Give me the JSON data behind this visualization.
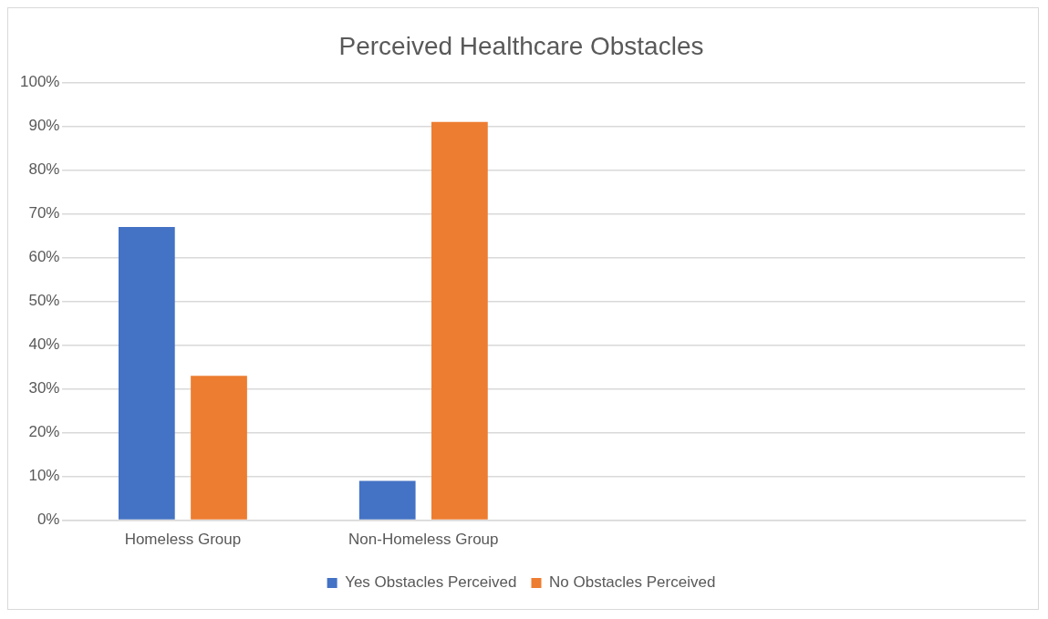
{
  "chart_data": {
    "type": "bar",
    "title": "Perceived Healthcare Obstacles",
    "categories": [
      "Homeless Group",
      "Non-Homeless Group",
      null,
      null
    ],
    "series": [
      {
        "name": "Yes Obstacles Perceived",
        "color": "#4472c4",
        "values": [
          67,
          9,
          null,
          null
        ]
      },
      {
        "name": "No Obstacles Perceived",
        "color": "#ed7d31",
        "values": [
          33,
          91,
          null,
          null
        ]
      }
    ],
    "ylim": [
      0,
      100
    ],
    "yticks": [
      {
        "value": 0,
        "label": "0%"
      },
      {
        "value": 10,
        "label": "10%"
      },
      {
        "value": 20,
        "label": "20%"
      },
      {
        "value": 30,
        "label": "30%"
      },
      {
        "value": 40,
        "label": "40%"
      },
      {
        "value": 50,
        "label": "50%"
      },
      {
        "value": 60,
        "label": "60%"
      },
      {
        "value": 70,
        "label": "70%"
      },
      {
        "value": 80,
        "label": "80%"
      },
      {
        "value": 90,
        "label": "90%"
      },
      {
        "value": 100,
        "label": "100%"
      }
    ],
    "grid": "y",
    "legend": "bottom"
  }
}
